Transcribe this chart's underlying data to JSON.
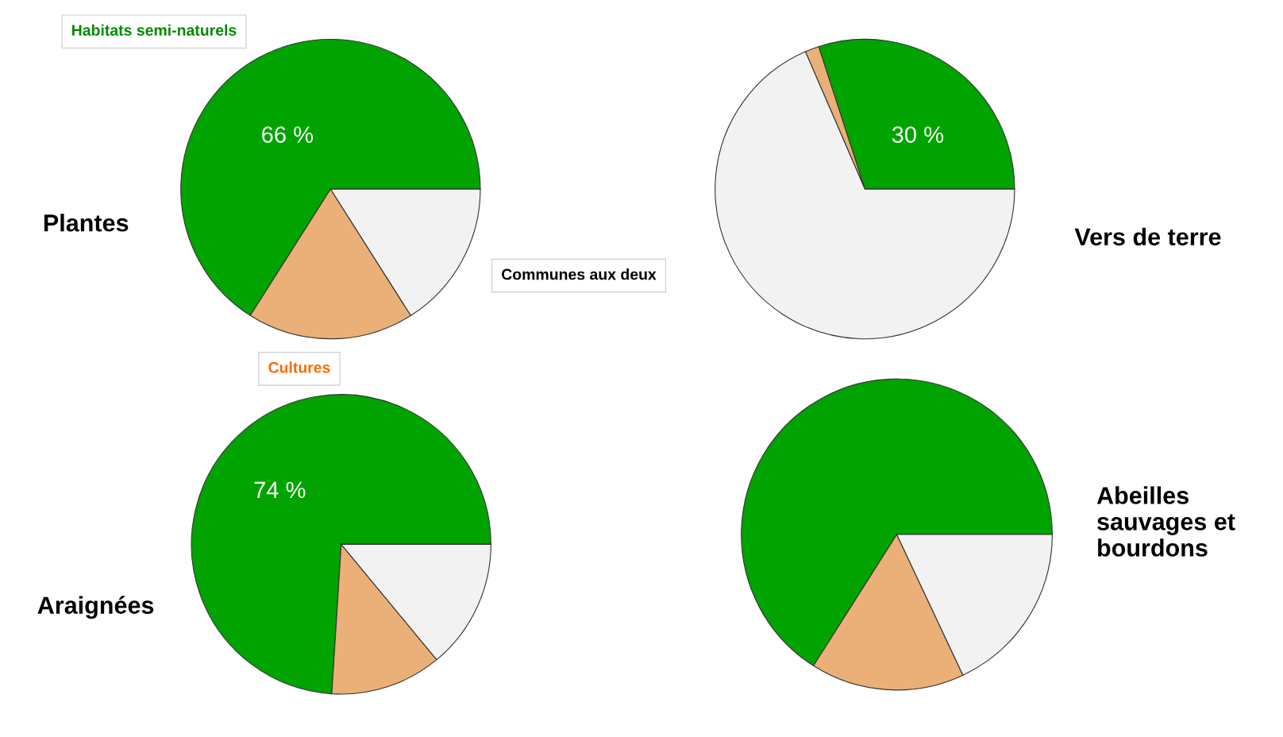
{
  "chart_data": [
    {
      "type": "pie",
      "title": "Plantes",
      "categories": [
        "Habitats semi-naturels",
        "Cultures",
        "Communes aux deux"
      ],
      "values": [
        66,
        18,
        16
      ],
      "colors": [
        "#00a300",
        "#eab077",
        "#f2f2f2"
      ],
      "value_labels": [
        "66 %",
        null,
        null
      ]
    },
    {
      "type": "pie",
      "title": "Vers de terre",
      "categories": [
        null,
        null,
        null
      ],
      "values": [
        30,
        1.5,
        68.5
      ],
      "colors": [
        "#00a300",
        "#eab077",
        "#f2f2f2"
      ],
      "value_labels": [
        "30 %",
        null,
        null
      ]
    },
    {
      "type": "pie",
      "title": "Araignées",
      "categories": [
        null,
        null,
        null
      ],
      "values": [
        74,
        12,
        14
      ],
      "colors": [
        "#00a300",
        "#eab077",
        "#f2f2f2"
      ],
      "value_labels": [
        "74 %",
        null,
        null
      ]
    },
    {
      "type": "pie",
      "title": "Abeilles sauvages et bourdons",
      "categories": [
        null,
        null,
        null
      ],
      "values": [
        66,
        16,
        18
      ],
      "colors": [
        "#00a300",
        "#eab077",
        "#f2f2f2"
      ]
    }
  ]
}
